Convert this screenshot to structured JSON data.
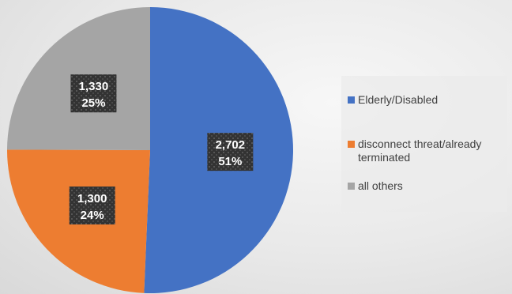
{
  "chart_data": {
    "type": "pie",
    "title": "",
    "start_angle_deg": 0,
    "direction": "clockwise",
    "slices": [
      {
        "name": "Elderly/Disabled",
        "value": 2702,
        "percent_label": "51%",
        "value_label": "2,702",
        "color": "#4472C4"
      },
      {
        "name": "disconnect threat/already terminated",
        "value": 1300,
        "percent_label": "24%",
        "value_label": "1,300",
        "color": "#ED7D31"
      },
      {
        "name": "all others",
        "value": 1330,
        "percent_label": "25%",
        "value_label": "1,330",
        "color": "#A5A5A5"
      }
    ],
    "legend": {
      "position": "right",
      "entries": [
        "Elderly/Disabled",
        "disconnect threat/already terminated",
        "all others"
      ]
    }
  }
}
